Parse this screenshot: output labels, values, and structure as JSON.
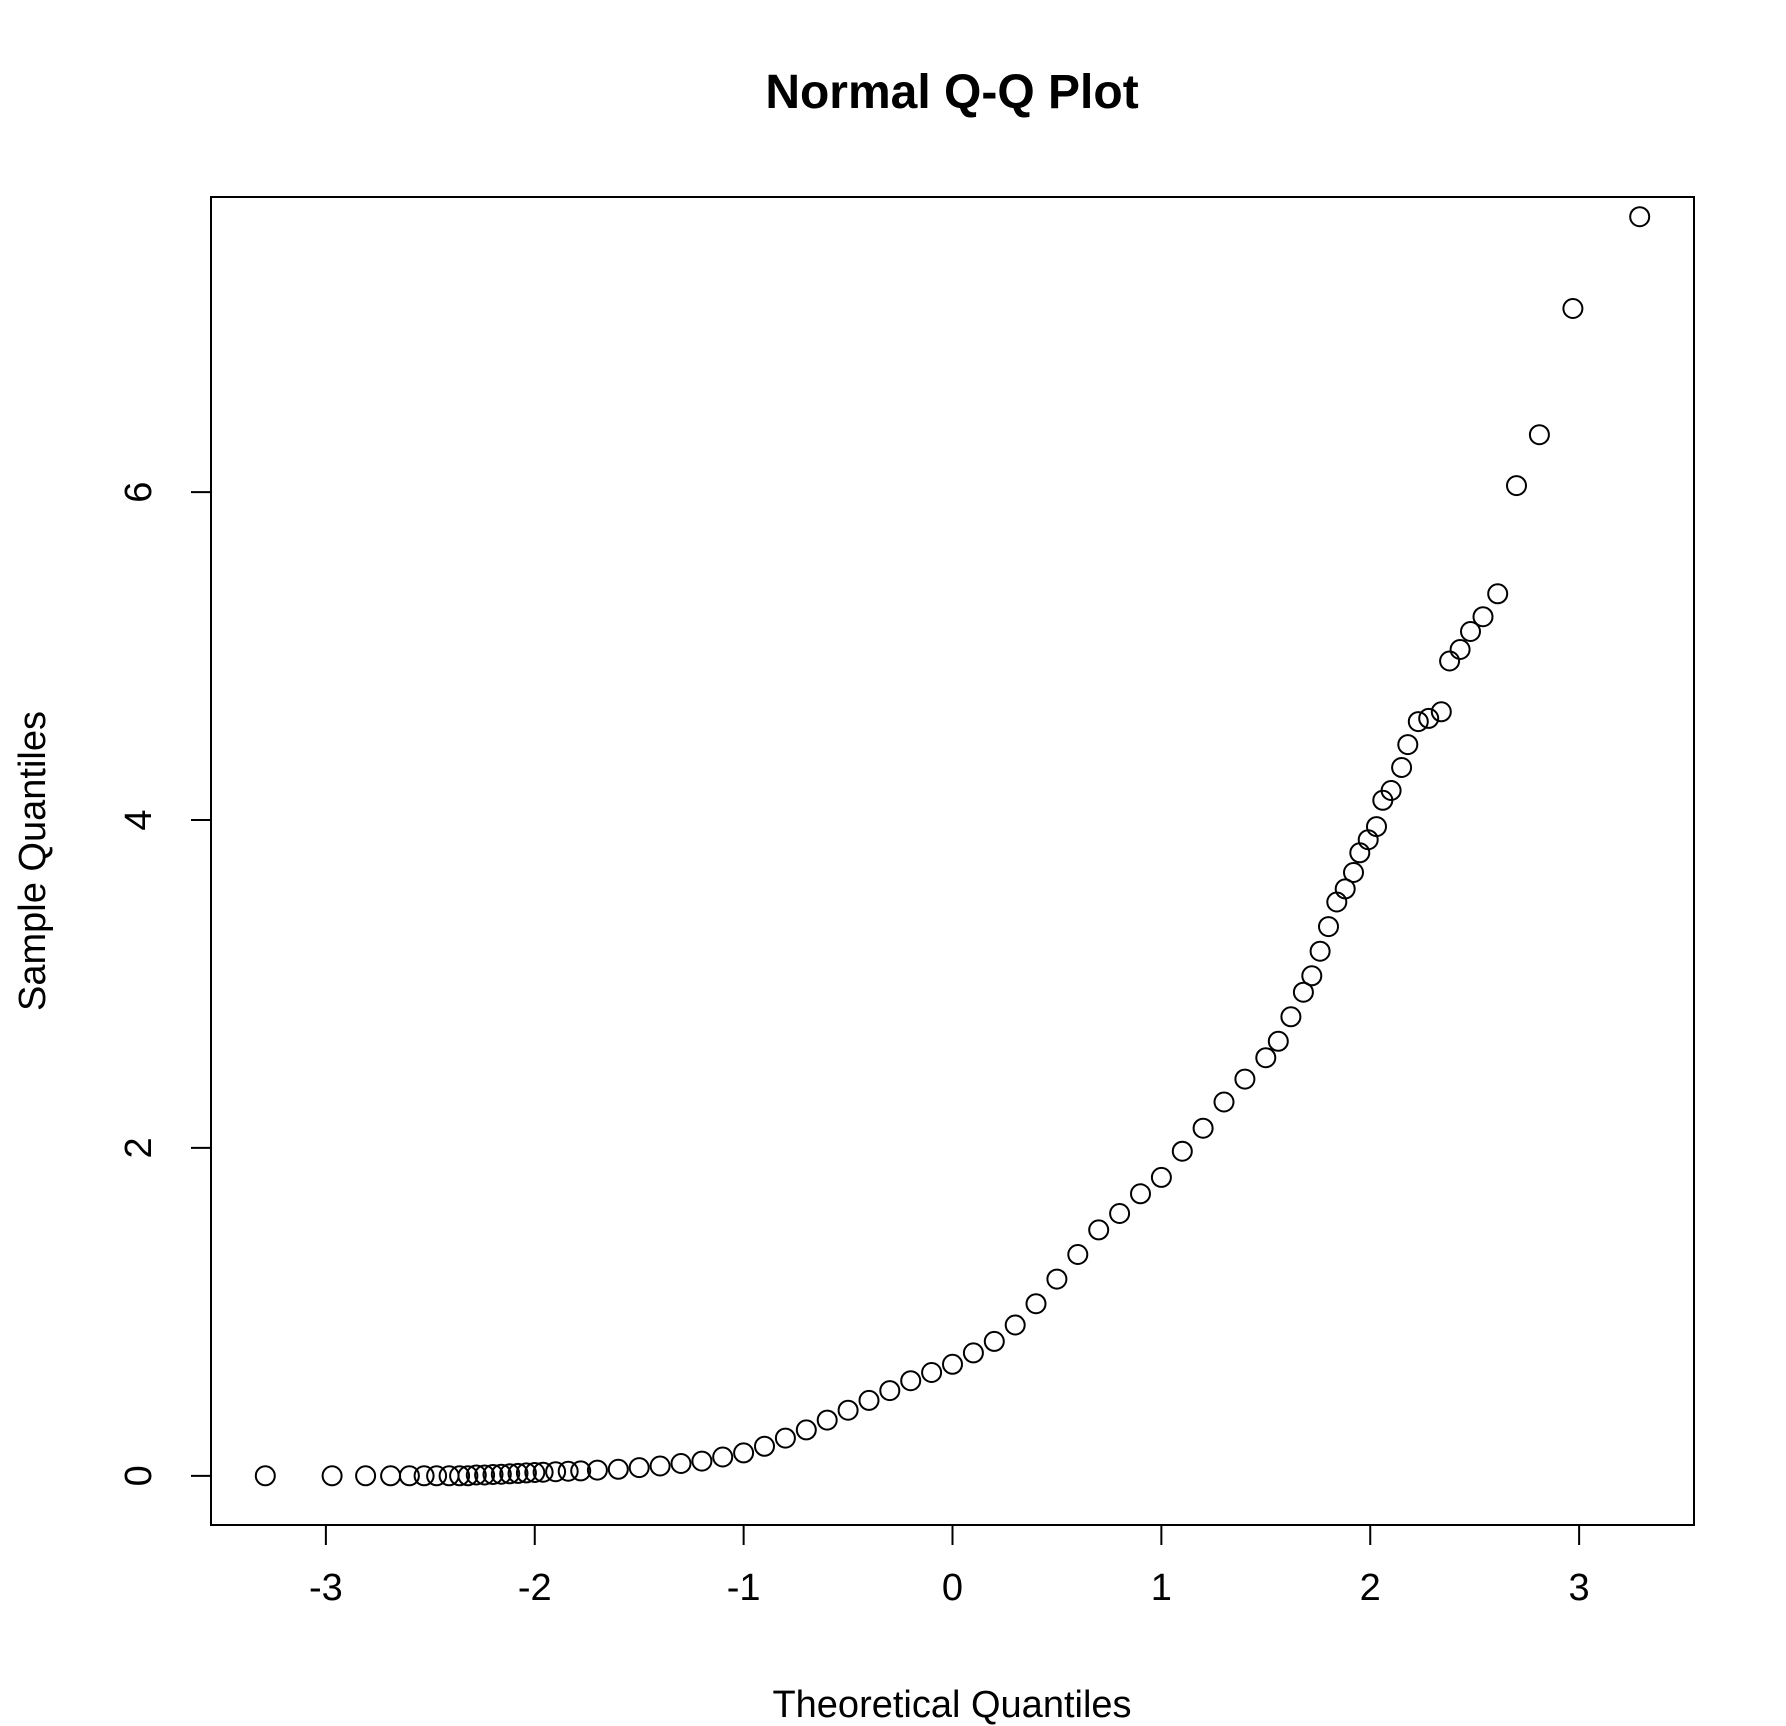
{
  "chart_data": {
    "type": "scatter",
    "title": "Normal Q-Q Plot",
    "xlabel": "Theoretical Quantiles",
    "ylabel": "Sample Quantiles",
    "xlim": [
      -3.55,
      3.55
    ],
    "ylim": [
      -0.3,
      7.8
    ],
    "xticks": [
      -3,
      -2,
      -1,
      0,
      1,
      2,
      3
    ],
    "xtick_labels": [
      "-3",
      "-2",
      "-1",
      "0",
      "1",
      "2",
      "3"
    ],
    "yticks": [
      0,
      2,
      4,
      6
    ],
    "ytick_labels": [
      "0",
      "2",
      "4",
      "6"
    ],
    "grid": false,
    "marker": "open-circle",
    "points": [
      [
        -3.29,
        0.0
      ],
      [
        -2.97,
        0.0
      ],
      [
        -2.81,
        0.0
      ],
      [
        -2.69,
        0.0
      ],
      [
        -2.6,
        0.0
      ],
      [
        -2.53,
        0.0
      ],
      [
        -2.47,
        0.0
      ],
      [
        -2.41,
        0.0
      ],
      [
        -2.36,
        0.0
      ],
      [
        -2.32,
        0.0
      ],
      [
        -2.28,
        0.005
      ],
      [
        -2.24,
        0.005
      ],
      [
        -2.2,
        0.008
      ],
      [
        -2.16,
        0.01
      ],
      [
        -2.12,
        0.012
      ],
      [
        -2.08,
        0.015
      ],
      [
        -2.04,
        0.018
      ],
      [
        -2.0,
        0.02
      ],
      [
        -1.96,
        0.022
      ],
      [
        -1.9,
        0.025
      ],
      [
        -1.84,
        0.028
      ],
      [
        -1.78,
        0.03
      ],
      [
        -1.7,
        0.035
      ],
      [
        -1.6,
        0.04
      ],
      [
        -1.5,
        0.05
      ],
      [
        -1.4,
        0.06
      ],
      [
        -1.3,
        0.075
      ],
      [
        -1.2,
        0.09
      ],
      [
        -1.1,
        0.115
      ],
      [
        -1.0,
        0.14
      ],
      [
        -0.9,
        0.18
      ],
      [
        -0.8,
        0.23
      ],
      [
        -0.7,
        0.28
      ],
      [
        -0.6,
        0.34
      ],
      [
        -0.5,
        0.4
      ],
      [
        -0.4,
        0.46
      ],
      [
        -0.3,
        0.52
      ],
      [
        -0.2,
        0.58
      ],
      [
        -0.1,
        0.63
      ],
      [
        0.0,
        0.68
      ],
      [
        0.1,
        0.75
      ],
      [
        0.2,
        0.82
      ],
      [
        0.3,
        0.92
      ],
      [
        0.4,
        1.05
      ],
      [
        0.5,
        1.2
      ],
      [
        0.6,
        1.35
      ],
      [
        0.7,
        1.5
      ],
      [
        0.8,
        1.6
      ],
      [
        0.9,
        1.72
      ],
      [
        1.0,
        1.82
      ],
      [
        1.1,
        1.98
      ],
      [
        1.2,
        2.12
      ],
      [
        1.3,
        2.28
      ],
      [
        1.4,
        2.42
      ],
      [
        1.5,
        2.55
      ],
      [
        1.56,
        2.65
      ],
      [
        1.62,
        2.8
      ],
      [
        1.68,
        2.95
      ],
      [
        1.72,
        3.05
      ],
      [
        1.76,
        3.2
      ],
      [
        1.8,
        3.35
      ],
      [
        1.84,
        3.5
      ],
      [
        1.88,
        3.58
      ],
      [
        1.92,
        3.68
      ],
      [
        1.95,
        3.8
      ],
      [
        1.99,
        3.88
      ],
      [
        2.03,
        3.96
      ],
      [
        2.06,
        4.12
      ],
      [
        2.1,
        4.18
      ],
      [
        2.15,
        4.32
      ],
      [
        2.18,
        4.46
      ],
      [
        2.23,
        4.6
      ],
      [
        2.28,
        4.62
      ],
      [
        2.34,
        4.66
      ],
      [
        2.38,
        4.97
      ],
      [
        2.43,
        5.04
      ],
      [
        2.48,
        5.15
      ],
      [
        2.54,
        5.24
      ],
      [
        2.61,
        5.38
      ],
      [
        2.7,
        6.04
      ],
      [
        2.81,
        6.35
      ],
      [
        2.97,
        7.12
      ],
      [
        3.29,
        7.68
      ]
    ]
  }
}
